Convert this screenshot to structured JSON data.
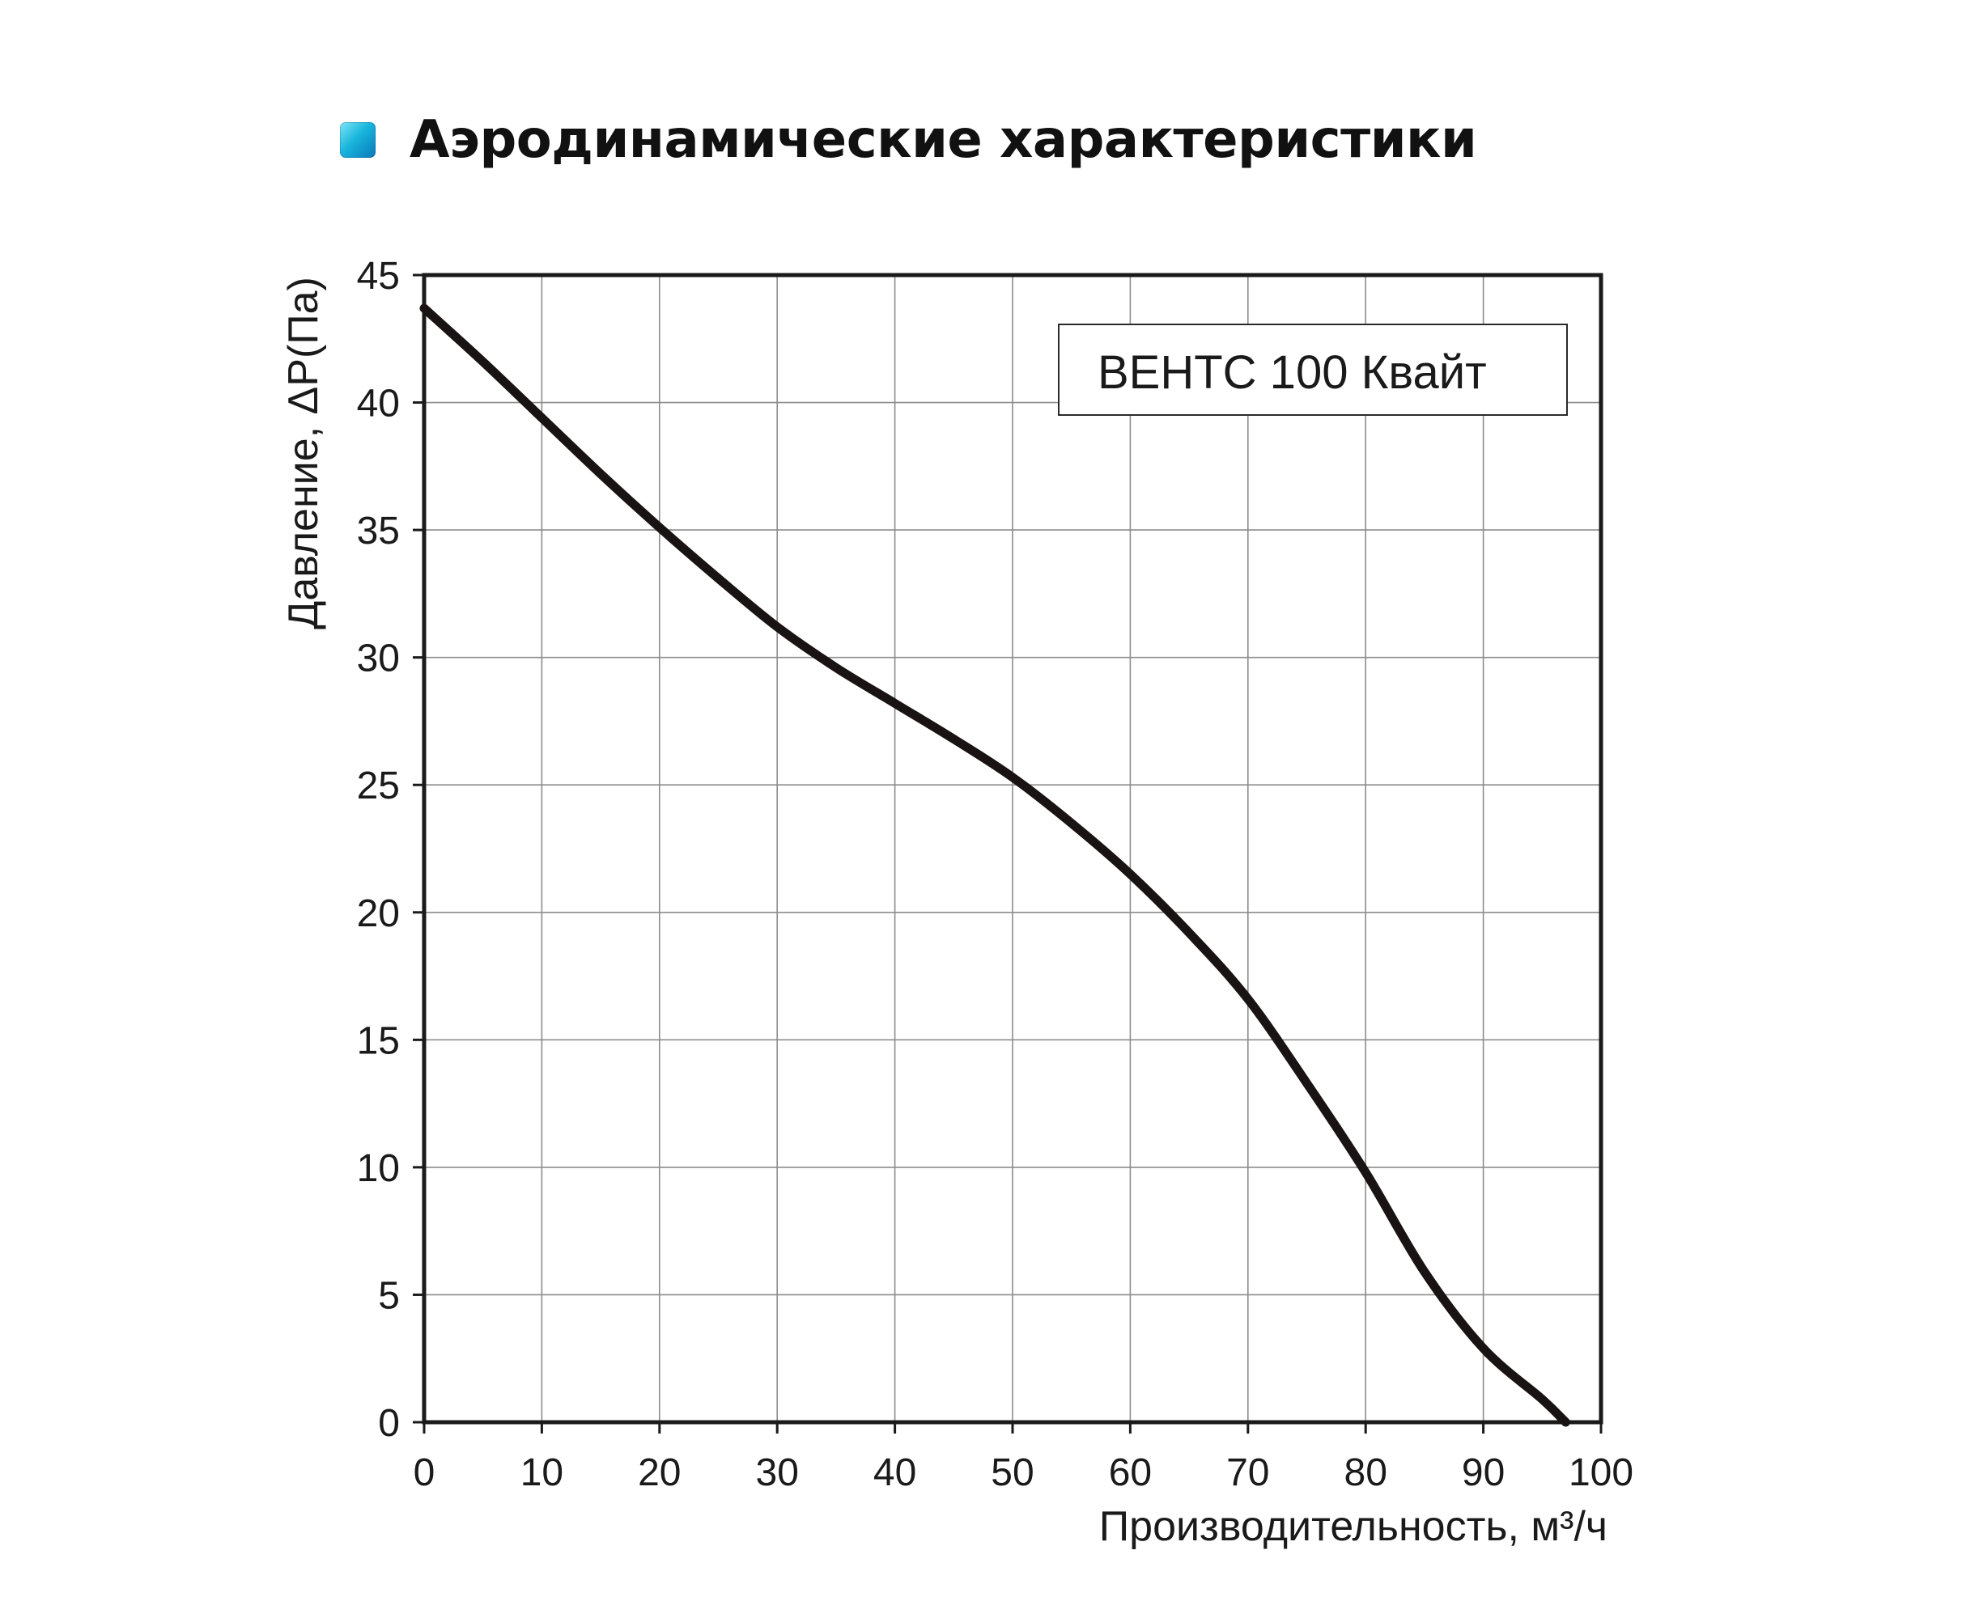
{
  "header": {
    "bullet_icon": "square-bullet-icon",
    "title": "Аэродинамические характеристики"
  },
  "chart_data": {
    "type": "line",
    "xlabel": "Производительность, м³/ч",
    "ylabel": "Давление, ΔP(Па)",
    "xlim": [
      0,
      100
    ],
    "ylim": [
      0,
      45
    ],
    "x_ticks": [
      "0",
      "10",
      "20",
      "30",
      "40",
      "50",
      "60",
      "70",
      "80",
      "90",
      "100"
    ],
    "y_ticks": [
      "0",
      "5",
      "10",
      "15",
      "20",
      "25",
      "30",
      "35",
      "40",
      "45"
    ],
    "grid": true,
    "legend_position": "top-right",
    "series": [
      {
        "name": "ВЕНТС 100 Квайт",
        "x": [
          0,
          5,
          10,
          15,
          20,
          25,
          30,
          35,
          40,
          45,
          50,
          55,
          60,
          65,
          70,
          75,
          80,
          85,
          90,
          95,
          97
        ],
        "y": [
          43.7,
          41.6,
          39.4,
          37.2,
          35.1,
          33.1,
          31.2,
          29.6,
          28.2,
          26.8,
          25.3,
          23.5,
          21.5,
          19.2,
          16.6,
          13.3,
          9.8,
          5.9,
          2.9,
          0.9,
          0
        ]
      }
    ]
  }
}
